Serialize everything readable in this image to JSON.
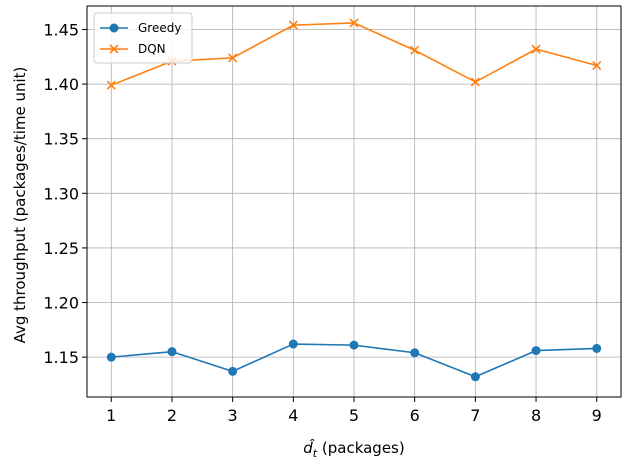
{
  "chart_data": {
    "type": "line",
    "x": [
      1,
      2,
      3,
      4,
      5,
      6,
      7,
      8,
      9
    ],
    "xticks": [
      "1",
      "2",
      "3",
      "4",
      "5",
      "6",
      "7",
      "8",
      "9"
    ],
    "yticks": [
      "1.15",
      "1.20",
      "1.25",
      "1.30",
      "1.35",
      "1.40",
      "1.45"
    ],
    "ytick_values": [
      1.15,
      1.2,
      1.25,
      1.3,
      1.35,
      1.4,
      1.45
    ],
    "xlim": [
      0.6,
      9.4
    ],
    "ylim": [
      1.1135,
      1.4715
    ],
    "xlabel": "d̂",
    "xlabel_sub": "t",
    "xlabel_suffix": " (packages)",
    "ylabel": "Avg throughput (packages/time unit)",
    "grid": true,
    "legend_position": "top-left",
    "series": [
      {
        "name": "Greedy",
        "color": "#1f77b4",
        "marker": "circle",
        "values": [
          1.15,
          1.155,
          1.137,
          1.162,
          1.161,
          1.154,
          1.132,
          1.156,
          1.158
        ]
      },
      {
        "name": "DQN",
        "color": "#ff7f0e",
        "marker": "x",
        "values": [
          1.399,
          1.421,
          1.424,
          1.454,
          1.456,
          1.431,
          1.402,
          1.432,
          1.417
        ]
      }
    ]
  }
}
